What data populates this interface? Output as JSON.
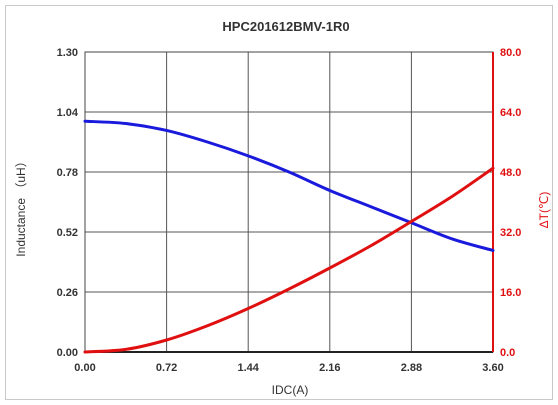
{
  "chart_data": {
    "type": "line",
    "title": "HPC201612BMV-1R0",
    "xlabel": "IDC(A)",
    "ylabel_left": "Inductance （uH）",
    "ylabel_right": "ΔT(℃)",
    "xlim": [
      0,
      3.6
    ],
    "ylim_left": [
      0,
      1.3
    ],
    "ylim_right": [
      0,
      80
    ],
    "x_ticks": [
      "0.00",
      "0.72",
      "1.44",
      "2.16",
      "2.88",
      "3.60"
    ],
    "y_left_ticks": [
      "0.00",
      "0.26",
      "0.52",
      "0.78",
      "1.04",
      "1.30"
    ],
    "y_right_ticks": [
      "0.0",
      "16.0",
      "32.0",
      "48.0",
      "64.0",
      "80.0"
    ],
    "grid": true,
    "series": [
      {
        "axis": "left",
        "color": "#1a1adc",
        "x": [
          0,
          0.36,
          0.72,
          1.08,
          1.44,
          1.8,
          2.16,
          2.52,
          2.88,
          3.24,
          3.6
        ],
        "values": [
          1.0,
          0.99,
          0.96,
          0.91,
          0.85,
          0.78,
          0.7,
          0.63,
          0.56,
          0.49,
          0.44
        ]
      },
      {
        "axis": "right",
        "color": "#e01010",
        "x": [
          0,
          0.36,
          0.72,
          1.08,
          1.44,
          1.8,
          2.16,
          2.52,
          2.88,
          3.24,
          3.6
        ],
        "values": [
          0,
          0.7,
          3.2,
          7.0,
          11.6,
          16.8,
          22.4,
          28.3,
          34.8,
          41.5,
          49.0
        ]
      }
    ]
  }
}
